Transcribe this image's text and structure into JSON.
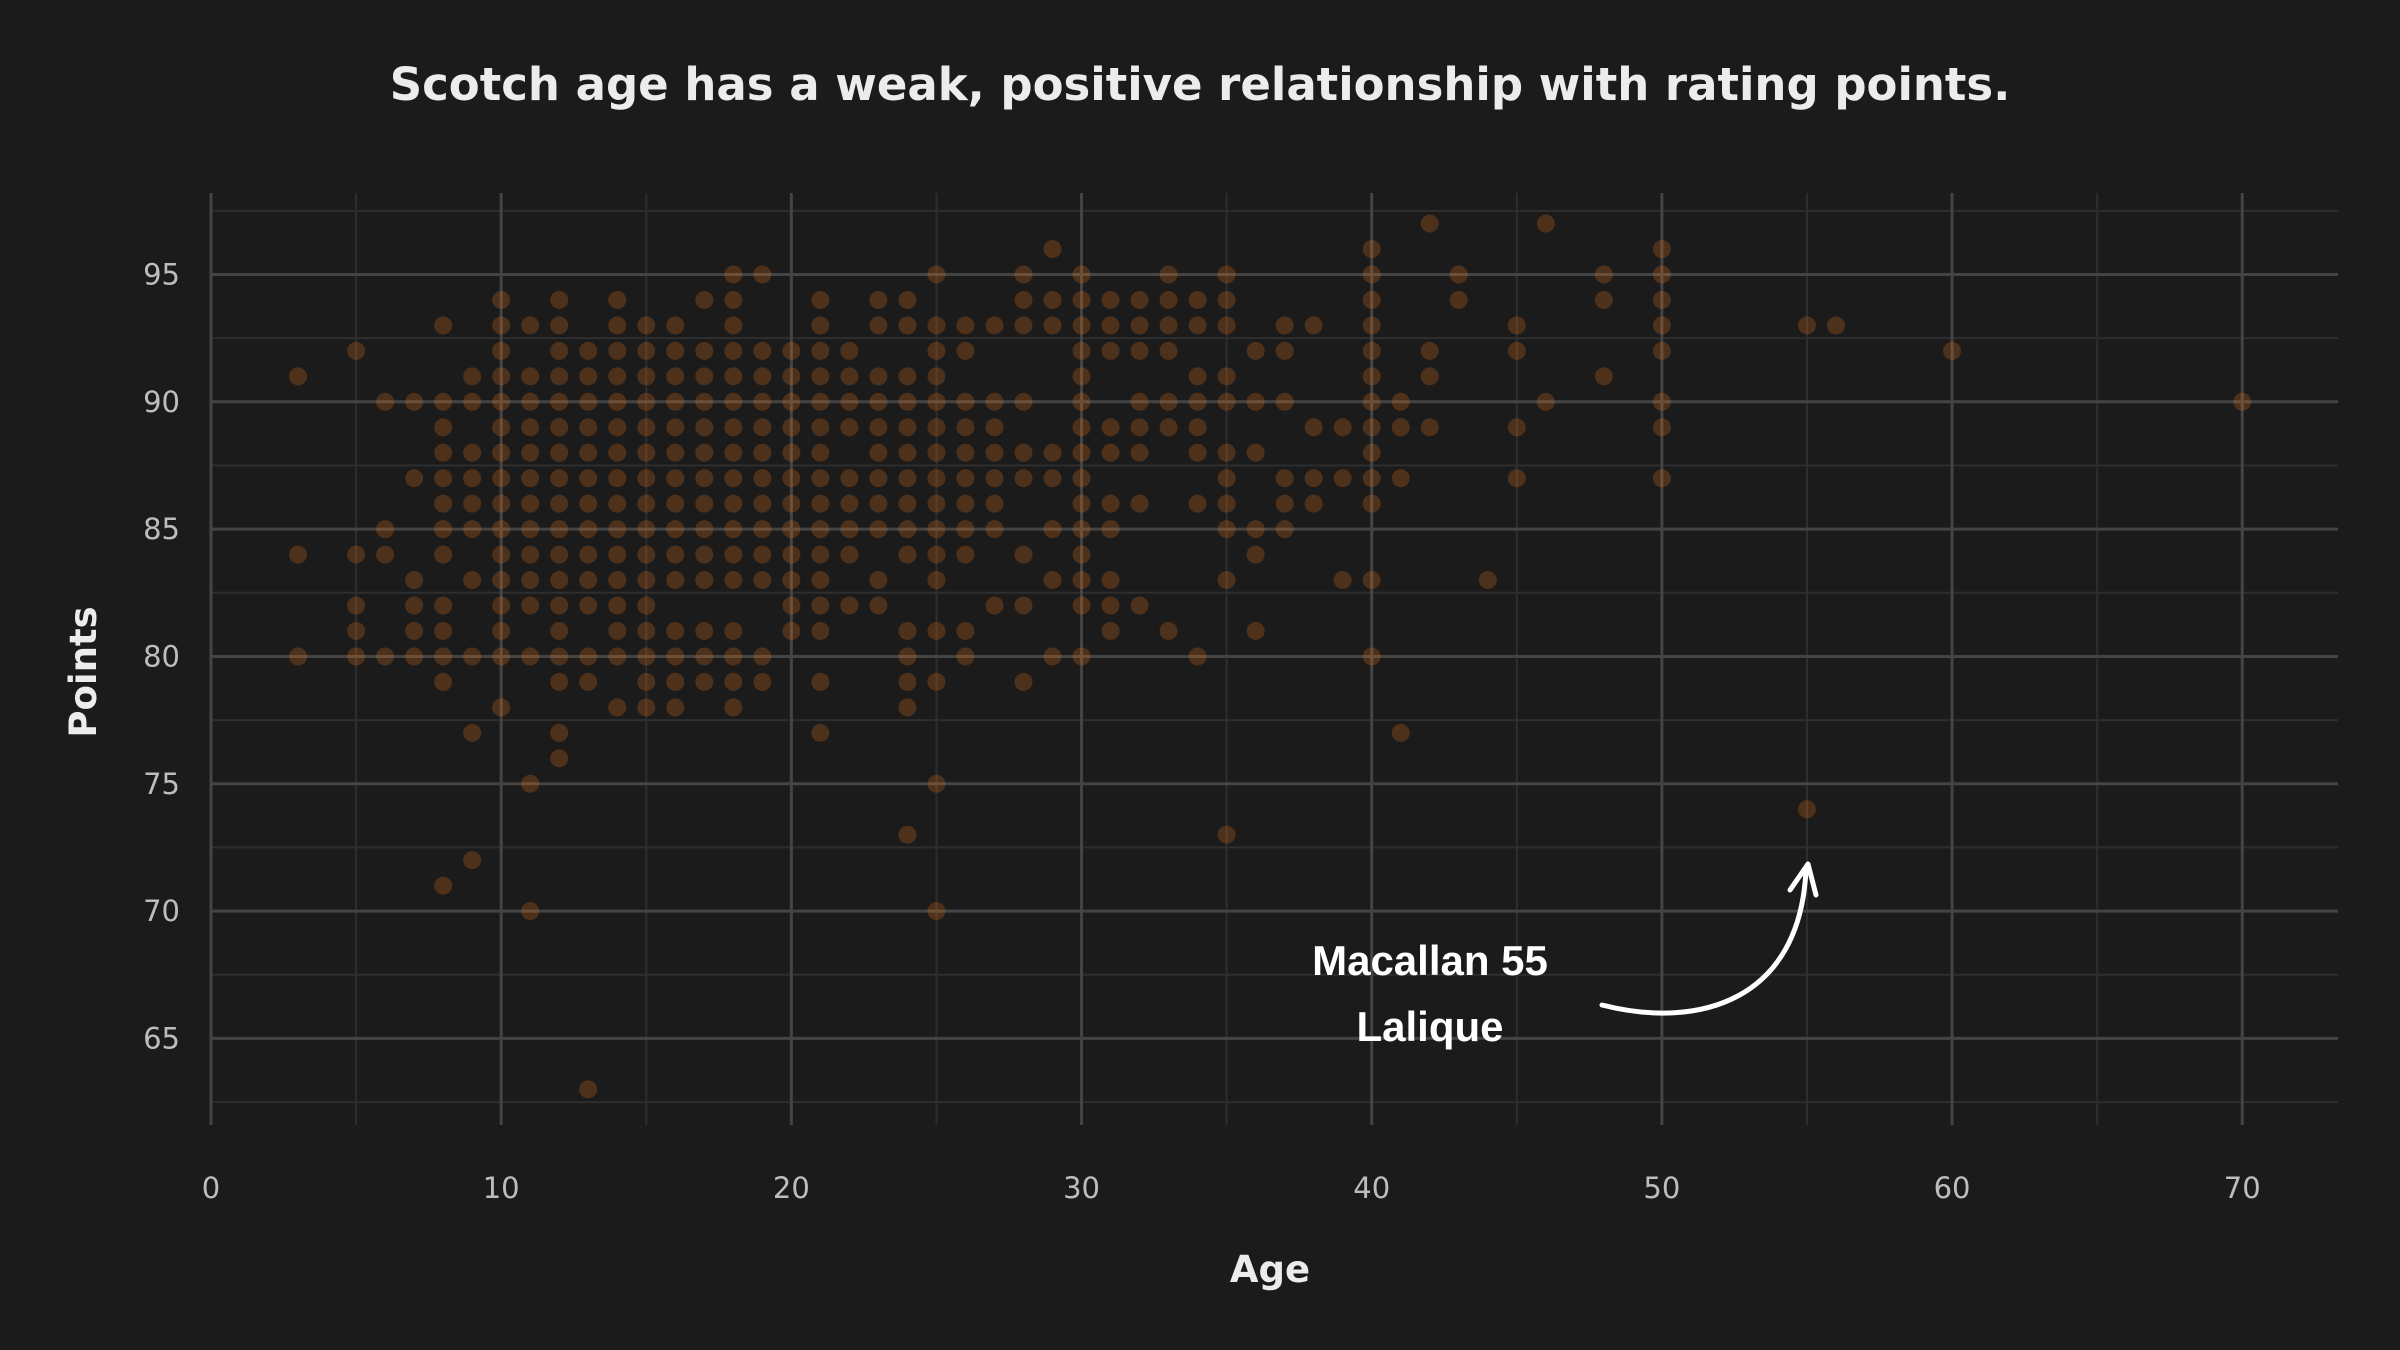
{
  "chart_data": {
    "type": "scatter",
    "title": "Scotch age has a weak, positive relationship with rating points.",
    "xlabel": "Age",
    "ylabel": "Points",
    "xlim": [
      0,
      73.3
    ],
    "ylim": [
      61.6,
      98.2
    ],
    "x_ticks": [
      0,
      10,
      20,
      30,
      40,
      50,
      60,
      70
    ],
    "y_ticks": [
      65,
      70,
      75,
      80,
      85,
      90,
      95
    ],
    "grid": true,
    "point_color": "#e8731a",
    "background": "#1b1b1b",
    "annotation": {
      "text_line1": "Macallan 55",
      "text_line2": "Lalique",
      "x": 55,
      "y": 74
    },
    "points": [
      [
        3,
        91
      ],
      [
        3,
        84
      ],
      [
        3,
        80
      ],
      [
        5,
        92
      ],
      [
        5,
        84
      ],
      [
        5,
        82
      ],
      [
        5,
        81
      ],
      [
        5,
        80
      ],
      [
        6,
        90
      ],
      [
        6,
        85
      ],
      [
        6,
        84
      ],
      [
        6,
        80
      ],
      [
        7,
        90
      ],
      [
        7,
        87
      ],
      [
        7,
        83
      ],
      [
        7,
        82
      ],
      [
        7,
        81
      ],
      [
        7,
        80
      ],
      [
        8,
        93
      ],
      [
        8,
        90
      ],
      [
        8,
        89
      ],
      [
        8,
        88
      ],
      [
        8,
        87
      ],
      [
        8,
        86
      ],
      [
        8,
        85
      ],
      [
        8,
        84
      ],
      [
        8,
        82
      ],
      [
        8,
        81
      ],
      [
        8,
        80
      ],
      [
        8,
        79
      ],
      [
        8,
        71
      ],
      [
        9,
        91
      ],
      [
        9,
        90
      ],
      [
        9,
        88
      ],
      [
        9,
        87
      ],
      [
        9,
        86
      ],
      [
        9,
        85
      ],
      [
        9,
        83
      ],
      [
        9,
        80
      ],
      [
        9,
        77
      ],
      [
        9,
        72
      ],
      [
        10,
        94
      ],
      [
        10,
        93
      ],
      [
        10,
        92
      ],
      [
        10,
        91
      ],
      [
        10,
        90
      ],
      [
        10,
        89
      ],
      [
        10,
        88
      ],
      [
        10,
        87
      ],
      [
        10,
        86
      ],
      [
        10,
        85
      ],
      [
        10,
        84
      ],
      [
        10,
        83
      ],
      [
        10,
        82
      ],
      [
        10,
        81
      ],
      [
        10,
        80
      ],
      [
        10,
        78
      ],
      [
        11,
        93
      ],
      [
        11,
        91
      ],
      [
        11,
        90
      ],
      [
        11,
        89
      ],
      [
        11,
        88
      ],
      [
        11,
        87
      ],
      [
        11,
        86
      ],
      [
        11,
        85
      ],
      [
        11,
        84
      ],
      [
        11,
        83
      ],
      [
        11,
        82
      ],
      [
        11,
        80
      ],
      [
        11,
        75
      ],
      [
        11,
        70
      ],
      [
        12,
        94
      ],
      [
        12,
        93
      ],
      [
        12,
        92
      ],
      [
        12,
        91
      ],
      [
        12,
        90
      ],
      [
        12,
        89
      ],
      [
        12,
        88
      ],
      [
        12,
        87
      ],
      [
        12,
        86
      ],
      [
        12,
        85
      ],
      [
        12,
        84
      ],
      [
        12,
        83
      ],
      [
        12,
        82
      ],
      [
        12,
        81
      ],
      [
        12,
        80
      ],
      [
        12,
        79
      ],
      [
        12,
        77
      ],
      [
        12,
        76
      ],
      [
        13,
        92
      ],
      [
        13,
        91
      ],
      [
        13,
        90
      ],
      [
        13,
        89
      ],
      [
        13,
        88
      ],
      [
        13,
        87
      ],
      [
        13,
        86
      ],
      [
        13,
        85
      ],
      [
        13,
        84
      ],
      [
        13,
        83
      ],
      [
        13,
        82
      ],
      [
        13,
        80
      ],
      [
        13,
        79
      ],
      [
        13,
        63
      ],
      [
        14,
        94
      ],
      [
        14,
        93
      ],
      [
        14,
        92
      ],
      [
        14,
        91
      ],
      [
        14,
        90
      ],
      [
        14,
        89
      ],
      [
        14,
        88
      ],
      [
        14,
        87
      ],
      [
        14,
        86
      ],
      [
        14,
        85
      ],
      [
        14,
        84
      ],
      [
        14,
        83
      ],
      [
        14,
        82
      ],
      [
        14,
        81
      ],
      [
        14,
        80
      ],
      [
        14,
        78
      ],
      [
        15,
        93
      ],
      [
        15,
        92
      ],
      [
        15,
        91
      ],
      [
        15,
        90
      ],
      [
        15,
        89
      ],
      [
        15,
        88
      ],
      [
        15,
        87
      ],
      [
        15,
        86
      ],
      [
        15,
        85
      ],
      [
        15,
        84
      ],
      [
        15,
        83
      ],
      [
        15,
        82
      ],
      [
        15,
        81
      ],
      [
        15,
        80
      ],
      [
        15,
        79
      ],
      [
        15,
        78
      ],
      [
        16,
        93
      ],
      [
        16,
        92
      ],
      [
        16,
        91
      ],
      [
        16,
        90
      ],
      [
        16,
        89
      ],
      [
        16,
        88
      ],
      [
        16,
        87
      ],
      [
        16,
        86
      ],
      [
        16,
        85
      ],
      [
        16,
        84
      ],
      [
        16,
        83
      ],
      [
        16,
        81
      ],
      [
        16,
        80
      ],
      [
        16,
        79
      ],
      [
        16,
        78
      ],
      [
        17,
        94
      ],
      [
        17,
        92
      ],
      [
        17,
        91
      ],
      [
        17,
        90
      ],
      [
        17,
        89
      ],
      [
        17,
        88
      ],
      [
        17,
        87
      ],
      [
        17,
        86
      ],
      [
        17,
        85
      ],
      [
        17,
        84
      ],
      [
        17,
        83
      ],
      [
        17,
        81
      ],
      [
        17,
        80
      ],
      [
        17,
        79
      ],
      [
        18,
        95
      ],
      [
        18,
        94
      ],
      [
        18,
        93
      ],
      [
        18,
        92
      ],
      [
        18,
        91
      ],
      [
        18,
        90
      ],
      [
        18,
        89
      ],
      [
        18,
        88
      ],
      [
        18,
        87
      ],
      [
        18,
        86
      ],
      [
        18,
        85
      ],
      [
        18,
        84
      ],
      [
        18,
        83
      ],
      [
        18,
        81
      ],
      [
        18,
        80
      ],
      [
        18,
        79
      ],
      [
        18,
        78
      ],
      [
        19,
        95
      ],
      [
        19,
        92
      ],
      [
        19,
        91
      ],
      [
        19,
        90
      ],
      [
        19,
        89
      ],
      [
        19,
        88
      ],
      [
        19,
        87
      ],
      [
        19,
        86
      ],
      [
        19,
        85
      ],
      [
        19,
        84
      ],
      [
        19,
        83
      ],
      [
        19,
        80
      ],
      [
        19,
        79
      ],
      [
        20,
        92
      ],
      [
        20,
        91
      ],
      [
        20,
        90
      ],
      [
        20,
        89
      ],
      [
        20,
        88
      ],
      [
        20,
        87
      ],
      [
        20,
        86
      ],
      [
        20,
        85
      ],
      [
        20,
        84
      ],
      [
        20,
        83
      ],
      [
        20,
        82
      ],
      [
        20,
        81
      ],
      [
        21,
        94
      ],
      [
        21,
        93
      ],
      [
        21,
        92
      ],
      [
        21,
        91
      ],
      [
        21,
        90
      ],
      [
        21,
        89
      ],
      [
        21,
        88
      ],
      [
        21,
        87
      ],
      [
        21,
        86
      ],
      [
        21,
        85
      ],
      [
        21,
        84
      ],
      [
        21,
        83
      ],
      [
        21,
        82
      ],
      [
        21,
        81
      ],
      [
        21,
        79
      ],
      [
        21,
        77
      ],
      [
        22,
        92
      ],
      [
        22,
        91
      ],
      [
        22,
        90
      ],
      [
        22,
        89
      ],
      [
        22,
        87
      ],
      [
        22,
        86
      ],
      [
        22,
        85
      ],
      [
        22,
        84
      ],
      [
        22,
        82
      ],
      [
        23,
        94
      ],
      [
        23,
        93
      ],
      [
        23,
        91
      ],
      [
        23,
        90
      ],
      [
        23,
        89
      ],
      [
        23,
        88
      ],
      [
        23,
        87
      ],
      [
        23,
        86
      ],
      [
        23,
        85
      ],
      [
        23,
        83
      ],
      [
        23,
        82
      ],
      [
        24,
        94
      ],
      [
        24,
        93
      ],
      [
        24,
        91
      ],
      [
        24,
        90
      ],
      [
        24,
        89
      ],
      [
        24,
        88
      ],
      [
        24,
        87
      ],
      [
        24,
        86
      ],
      [
        24,
        85
      ],
      [
        24,
        84
      ],
      [
        24,
        81
      ],
      [
        24,
        80
      ],
      [
        24,
        79
      ],
      [
        24,
        78
      ],
      [
        24,
        73
      ],
      [
        25,
        95
      ],
      [
        25,
        93
      ],
      [
        25,
        92
      ],
      [
        25,
        91
      ],
      [
        25,
        90
      ],
      [
        25,
        89
      ],
      [
        25,
        88
      ],
      [
        25,
        87
      ],
      [
        25,
        86
      ],
      [
        25,
        85
      ],
      [
        25,
        84
      ],
      [
        25,
        83
      ],
      [
        25,
        81
      ],
      [
        25,
        79
      ],
      [
        25,
        75
      ],
      [
        25,
        70
      ],
      [
        26,
        93
      ],
      [
        26,
        92
      ],
      [
        26,
        90
      ],
      [
        26,
        89
      ],
      [
        26,
        88
      ],
      [
        26,
        87
      ],
      [
        26,
        86
      ],
      [
        26,
        85
      ],
      [
        26,
        84
      ],
      [
        26,
        81
      ],
      [
        26,
        80
      ],
      [
        27,
        93
      ],
      [
        27,
        90
      ],
      [
        27,
        89
      ],
      [
        27,
        88
      ],
      [
        27,
        87
      ],
      [
        27,
        86
      ],
      [
        27,
        85
      ],
      [
        27,
        82
      ],
      [
        28,
        95
      ],
      [
        28,
        94
      ],
      [
        28,
        93
      ],
      [
        28,
        90
      ],
      [
        28,
        88
      ],
      [
        28,
        87
      ],
      [
        28,
        84
      ],
      [
        28,
        82
      ],
      [
        28,
        79
      ],
      [
        29,
        96
      ],
      [
        29,
        94
      ],
      [
        29,
        93
      ],
      [
        29,
        88
      ],
      [
        29,
        87
      ],
      [
        29,
        85
      ],
      [
        29,
        83
      ],
      [
        29,
        80
      ],
      [
        30,
        95
      ],
      [
        30,
        94
      ],
      [
        30,
        93
      ],
      [
        30,
        92
      ],
      [
        30,
        91
      ],
      [
        30,
        90
      ],
      [
        30,
        89
      ],
      [
        30,
        88
      ],
      [
        30,
        87
      ],
      [
        30,
        86
      ],
      [
        30,
        85
      ],
      [
        30,
        84
      ],
      [
        30,
        83
      ],
      [
        30,
        82
      ],
      [
        30,
        80
      ],
      [
        31,
        94
      ],
      [
        31,
        93
      ],
      [
        31,
        92
      ],
      [
        31,
        89
      ],
      [
        31,
        88
      ],
      [
        31,
        86
      ],
      [
        31,
        85
      ],
      [
        31,
        83
      ],
      [
        31,
        82
      ],
      [
        31,
        81
      ],
      [
        32,
        94
      ],
      [
        32,
        93
      ],
      [
        32,
        92
      ],
      [
        32,
        90
      ],
      [
        32,
        89
      ],
      [
        32,
        88
      ],
      [
        32,
        86
      ],
      [
        32,
        82
      ],
      [
        33,
        95
      ],
      [
        33,
        94
      ],
      [
        33,
        93
      ],
      [
        33,
        92
      ],
      [
        33,
        90
      ],
      [
        33,
        89
      ],
      [
        33,
        81
      ],
      [
        34,
        94
      ],
      [
        34,
        93
      ],
      [
        34,
        91
      ],
      [
        34,
        90
      ],
      [
        34,
        89
      ],
      [
        34,
        88
      ],
      [
        34,
        86
      ],
      [
        34,
        80
      ],
      [
        35,
        95
      ],
      [
        35,
        94
      ],
      [
        35,
        93
      ],
      [
        35,
        91
      ],
      [
        35,
        90
      ],
      [
        35,
        88
      ],
      [
        35,
        87
      ],
      [
        35,
        86
      ],
      [
        35,
        85
      ],
      [
        35,
        83
      ],
      [
        35,
        73
      ],
      [
        36,
        92
      ],
      [
        36,
        90
      ],
      [
        36,
        88
      ],
      [
        36,
        85
      ],
      [
        36,
        84
      ],
      [
        36,
        81
      ],
      [
        37,
        93
      ],
      [
        37,
        92
      ],
      [
        37,
        90
      ],
      [
        37,
        87
      ],
      [
        37,
        86
      ],
      [
        37,
        85
      ],
      [
        38,
        93
      ],
      [
        38,
        89
      ],
      [
        38,
        87
      ],
      [
        38,
        86
      ],
      [
        39,
        89
      ],
      [
        39,
        87
      ],
      [
        39,
        83
      ],
      [
        40,
        96
      ],
      [
        40,
        95
      ],
      [
        40,
        94
      ],
      [
        40,
        93
      ],
      [
        40,
        92
      ],
      [
        40,
        91
      ],
      [
        40,
        90
      ],
      [
        40,
        89
      ],
      [
        40,
        88
      ],
      [
        40,
        87
      ],
      [
        40,
        86
      ],
      [
        40,
        83
      ],
      [
        40,
        80
      ],
      [
        41,
        90
      ],
      [
        41,
        89
      ],
      [
        41,
        87
      ],
      [
        41,
        77
      ],
      [
        42,
        97
      ],
      [
        42,
        92
      ],
      [
        42,
        91
      ],
      [
        42,
        89
      ],
      [
        43,
        95
      ],
      [
        43,
        94
      ],
      [
        44,
        83
      ],
      [
        45,
        93
      ],
      [
        45,
        92
      ],
      [
        45,
        89
      ],
      [
        45,
        87
      ],
      [
        46,
        97
      ],
      [
        46,
        90
      ],
      [
        48,
        95
      ],
      [
        48,
        94
      ],
      [
        48,
        91
      ],
      [
        50,
        96
      ],
      [
        50,
        95
      ],
      [
        50,
        94
      ],
      [
        50,
        93
      ],
      [
        50,
        92
      ],
      [
        50,
        90
      ],
      [
        50,
        89
      ],
      [
        50,
        87
      ],
      [
        55,
        93
      ],
      [
        55,
        74
      ],
      [
        56,
        93
      ],
      [
        60,
        92
      ],
      [
        70,
        90
      ]
    ]
  }
}
